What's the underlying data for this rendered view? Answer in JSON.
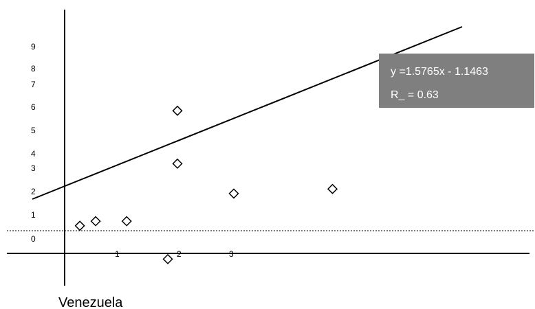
{
  "chart_data": {
    "type": "scatter",
    "caption": "Venezuela",
    "y_tick_labels": [
      "9",
      "8",
      "7",
      "6",
      "5",
      "4",
      "3",
      "2",
      "1",
      "0"
    ],
    "x_tick_labels": [
      "1",
      "2",
      "3"
    ],
    "points": [
      {
        "x": 0.27,
        "y": 1.2
      },
      {
        "x": 0.55,
        "y": 1.4
      },
      {
        "x": 1.1,
        "y": 1.4
      },
      {
        "x": 1.83,
        "y": -0.25
      },
      {
        "x": 2.0,
        "y": 3.9
      },
      {
        "x": 2.0,
        "y": 6.2
      },
      {
        "x": 3.0,
        "y": 2.6
      },
      {
        "x": 4.75,
        "y": 2.8
      }
    ],
    "trendline": {
      "slope": 1.5765,
      "intercept": -1.1463,
      "x_range": [
        -0.55,
        7.0
      ],
      "equation_label": "y =1.5765x - 1.1463",
      "r_label": "R_ = 0.63",
      "box_color": "#7f7f7f",
      "text_color": "#ffffff"
    },
    "reference_line": {
      "y": 0.35,
      "style": "dotted"
    },
    "axis_color": "#000000",
    "marker": "open-diamond"
  }
}
